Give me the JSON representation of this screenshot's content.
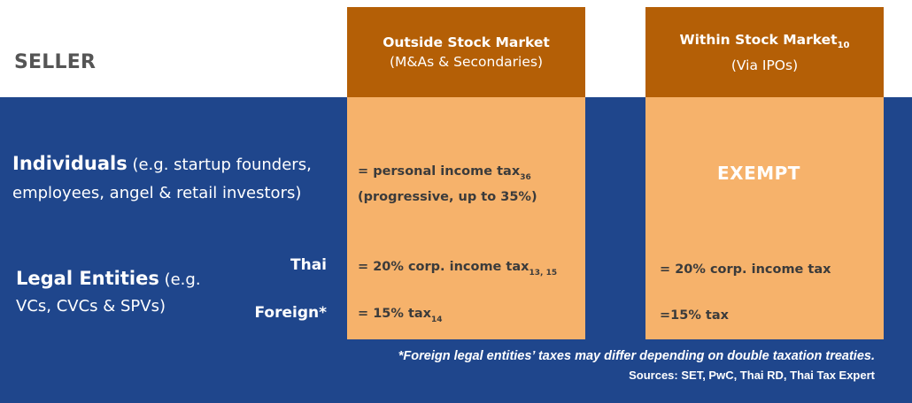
{
  "header": {
    "seller_label": "SELLER"
  },
  "columns": [
    {
      "title": "Outside Stock Market",
      "subtitle": "(M&As & Secondaries)"
    },
    {
      "title": "Within Stock Market",
      "title_ref": "10",
      "subtitle": "(Via IPOs)"
    }
  ],
  "rows": {
    "individuals": {
      "label_bold": "Individuals",
      "label_line1_rest": " (e.g. startup founders,",
      "label_line2": "employees, angel & retail investors)",
      "outside_line1": "= personal income tax",
      "outside_line1_ref": "36",
      "outside_line2": "(progressive, up to 35%)",
      "within": "EXEMPT"
    },
    "legal_entities": {
      "label_bold": "Legal Entities",
      "label_line1_rest": " (e.g.",
      "label_line2": "VCs, CVCs & SPVs)",
      "thai": {
        "label": "Thai",
        "outside": "= 20% corp. income tax",
        "outside_ref": "13, 15",
        "within": "= 20% corp. income tax"
      },
      "foreign": {
        "label": "Foreign*",
        "outside": "= 15% tax",
        "outside_ref": "14",
        "within": "=15% tax"
      }
    }
  },
  "footnote": "*Foreign legal entities’ taxes may differ depending on double taxation treaties.",
  "sources": "Sources: SET, PwC, Thai RD, Thai Tax Expert",
  "colors": {
    "header_orange": "#b45f06",
    "body_orange": "#f6b26b",
    "navy": "#1f468c"
  }
}
